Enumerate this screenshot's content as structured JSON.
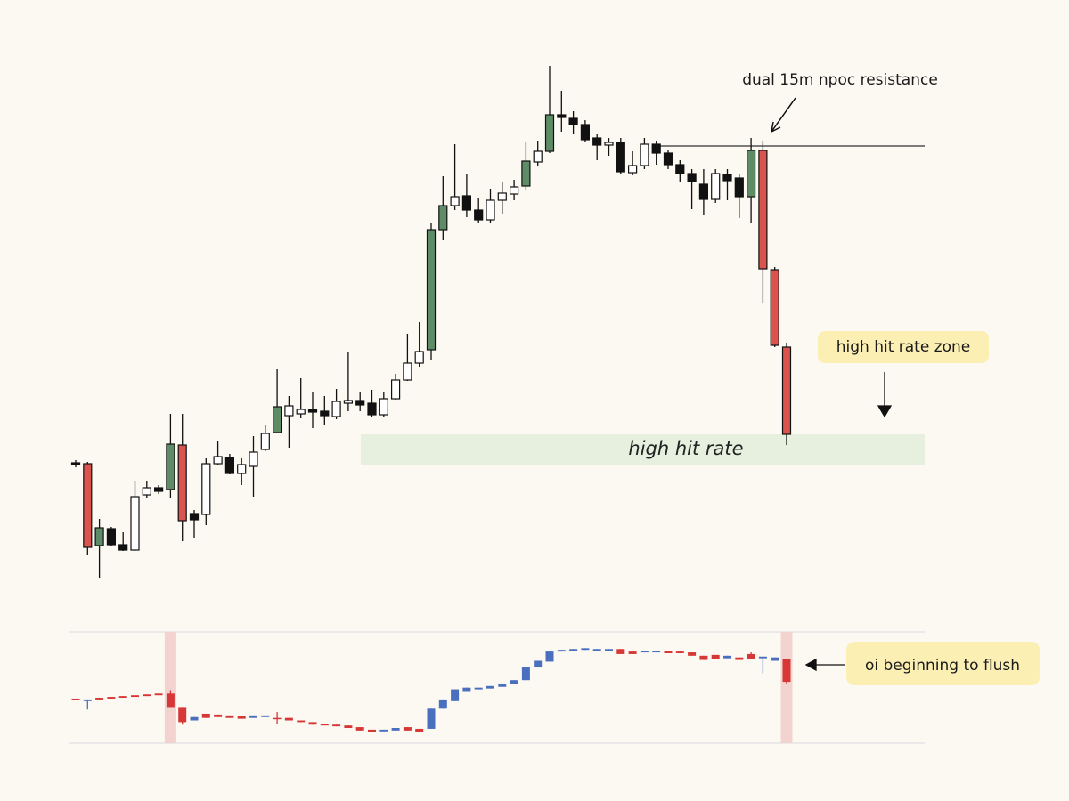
{
  "chart_data": [
    {
      "type": "candlestick",
      "open": [
        180,
        179,
        87,
        106,
        88,
        82,
        144,
        152,
        150,
        200,
        123,
        122,
        179,
        186,
        168,
        176,
        195,
        214,
        233,
        235,
        240,
        238,
        232,
        247,
        250,
        247,
        234,
        252,
        273,
        292,
        307,
        442,
        469,
        480,
        464,
        453,
        475,
        482,
        491,
        518,
        530,
        571,
        567,
        560,
        545,
        537,
        540,
        506,
        514,
        538,
        528,
        515,
        505,
        493,
        476,
        504,
        500,
        479,
        531,
        397,
        310
      ],
      "high": [
        183,
        181,
        117,
        108,
        102,
        160,
        160,
        155,
        235,
        235,
        127,
        185,
        205,
        190,
        185,
        210,
        222,
        285,
        255,
        275,
        260,
        255,
        263,
        305,
        260,
        262,
        260,
        280,
        325,
        338,
        450,
        502,
        538,
        505,
        478,
        488,
        495,
        498,
        540,
        542,
        626,
        598,
        575,
        565,
        550,
        545,
        545,
        530,
        545,
        542,
        532,
        520,
        510,
        510,
        510,
        510,
        505,
        545,
        542,
        400,
        315
      ],
      "low": [
        175,
        76,
        50,
        86,
        81,
        81,
        140,
        145,
        140,
        92,
        96,
        110,
        177,
        167,
        155,
        142,
        193,
        213,
        197,
        230,
        219,
        222,
        229,
        238,
        238,
        232,
        232,
        251,
        272,
        288,
        295,
        430,
        464,
        456,
        450,
        450,
        460,
        475,
        487,
        514,
        528,
        552,
        550,
        540,
        520,
        525,
        504,
        503,
        510,
        515,
        510,
        495,
        465,
        458,
        472,
        475,
        455,
        450,
        360,
        310,
        200
      ],
      "close": [
        178,
        85,
        107,
        88,
        82,
        142,
        152,
        148,
        201,
        115,
        116,
        179,
        187,
        168,
        178,
        192,
        213,
        243,
        244,
        240,
        237,
        233,
        249,
        250,
        245,
        234,
        252,
        273,
        292,
        305,
        442,
        469,
        479,
        464,
        453,
        475,
        483,
        490,
        519,
        530,
        571,
        568,
        560,
        543,
        537,
        540,
        507,
        514,
        538,
        528,
        515,
        505,
        496,
        476,
        505,
        497,
        479,
        531,
        398,
        312,
        212
      ],
      "colors": [
        "#111111",
        "#d9534f",
        "#5e8c66",
        "#111111",
        "#111111",
        "#ffffff",
        "#ffffff",
        "#111111",
        "#5e8c66",
        "#d9534f",
        "#111111",
        "#ffffff",
        "#ffffff",
        "#111111",
        "#ffffff",
        "#ffffff",
        "#ffffff",
        "#5e8c66",
        "#ffffff",
        "#ffffff",
        "#111111",
        "#111111",
        "#ffffff",
        "#ffffff",
        "#111111",
        "#111111",
        "#ffffff",
        "#ffffff",
        "#ffffff",
        "#ffffff",
        "#5e8c66",
        "#5e8c66",
        "#ffffff",
        "#111111",
        "#111111",
        "#ffffff",
        "#ffffff",
        "#ffffff",
        "#5e8c66",
        "#ffffff",
        "#5e8c66",
        "#111111",
        "#111111",
        "#111111",
        "#111111",
        "#ffffff",
        "#111111",
        "#ffffff",
        "#ffffff",
        "#111111",
        "#111111",
        "#111111",
        "#111111",
        "#111111",
        "#ffffff",
        "#111111",
        "#111111",
        "#5e8c66",
        "#d9534f",
        "#d9534f",
        "#d9534f"
      ],
      "ylim": [
        0,
        640
      ],
      "resistance": 536,
      "resistance_label": "dual 15m npoc resistance",
      "zone": [
        178,
        212
      ],
      "zone_label": "high hit rate",
      "zone_note": "high hit rate zone"
    },
    {
      "type": "candlestick",
      "open": [
        53,
        50,
        54,
        55,
        56,
        57,
        58,
        59,
        59,
        43,
        27,
        35,
        34,
        33,
        32,
        30,
        31,
        30,
        30,
        27,
        25,
        23,
        22,
        21,
        19,
        16,
        14,
        15,
        19,
        17,
        17,
        41,
        50,
        62,
        64,
        65,
        67,
        70,
        75,
        90,
        97,
        109,
        110,
        111,
        110,
        110,
        112,
        109,
        108,
        108,
        110,
        109,
        108,
        104,
        105,
        101,
        102,
        106,
        101,
        98,
        100
      ],
      "high": [
        53,
        52,
        54,
        55,
        56,
        57,
        58,
        59,
        63,
        43,
        31,
        35,
        34,
        33,
        32,
        33,
        33,
        37,
        30,
        27,
        25,
        23,
        22,
        21,
        19,
        16,
        16,
        18,
        19,
        17,
        41,
        52,
        64,
        66,
        66,
        68,
        71,
        75,
        91,
        98,
        109,
        111,
        112,
        113,
        112,
        112,
        112,
        109,
        110,
        110,
        110,
        109,
        108,
        104,
        105,
        104,
        102,
        108,
        103,
        102,
        100
      ],
      "low": [
        51,
        40,
        52,
        53,
        54,
        55,
        56,
        57,
        43,
        22,
        27,
        30,
        31,
        30,
        29,
        30,
        31,
        23,
        27,
        25,
        22,
        21,
        20,
        18,
        15,
        13,
        14,
        15,
        15,
        13,
        17,
        41,
        50,
        62,
        64,
        65,
        67,
        70,
        75,
        90,
        97,
        109,
        110,
        111,
        110,
        110,
        106,
        106,
        108,
        108,
        107,
        107,
        104,
        99,
        100,
        101,
        99,
        100,
        83,
        98,
        70
      ],
      "close": [
        51,
        52,
        52,
        53,
        54,
        55,
        56,
        57,
        43,
        25,
        31,
        30,
        31,
        30,
        29,
        33,
        33,
        29,
        27,
        25,
        22,
        21,
        20,
        18,
        15,
        13,
        16,
        18,
        15,
        13,
        41,
        52,
        64,
        66,
        66,
        68,
        71,
        75,
        91,
        98,
        109,
        111,
        112,
        113,
        112,
        112,
        106,
        106,
        110,
        110,
        107,
        107,
        104,
        99,
        100,
        104,
        99,
        100,
        103,
        102,
        73
      ],
      "up_color": "#4a6fbf",
      "down_color": "#d63838",
      "ylim": [
        0,
        125
      ],
      "highlights": [
        8,
        60
      ],
      "highlight_color": "#f3d3cf",
      "note": "oi beginning to flush"
    }
  ]
}
